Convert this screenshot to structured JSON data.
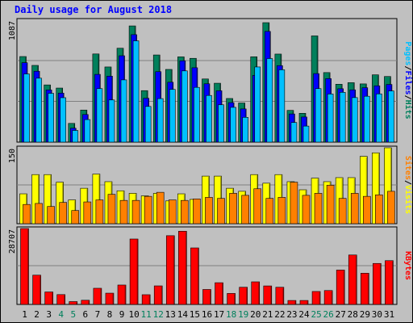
{
  "title": "Daily usage for August 2018",
  "colors": {
    "background": "#c0c0c0",
    "title": "#0000ff",
    "hits": "#00805c",
    "files": "#0000ff",
    "pages": "#00c0ff",
    "visits": "#ffff00",
    "sites": "#ff8000",
    "kbytes": "#ff0000",
    "weekday_label": "#000000",
    "weekend_label": "#00805c"
  },
  "chart_data": [
    {
      "type": "bar",
      "panel": "hits-files-pages",
      "ymax_label": "1087",
      "ylim": [
        0,
        1087
      ],
      "side_label": [
        "Pages",
        "/",
        "Files",
        "/",
        "Hits"
      ],
      "categories": [
        "1",
        "2",
        "3",
        "4",
        "5",
        "6",
        "7",
        "8",
        "9",
        "10",
        "11",
        "12",
        "13",
        "14",
        "15",
        "16",
        "17",
        "18",
        "19",
        "20",
        "21",
        "22",
        "23",
        "24",
        "25",
        "26",
        "27",
        "28",
        "29",
        "30",
        "31"
      ],
      "weekend": [
        false,
        false,
        false,
        true,
        true,
        false,
        false,
        false,
        false,
        false,
        true,
        true,
        false,
        false,
        false,
        false,
        false,
        true,
        true,
        false,
        false,
        false,
        false,
        false,
        true,
        true,
        false,
        false,
        false,
        false,
        false
      ],
      "series": [
        {
          "name": "Hits",
          "values": [
            763,
            684,
            510,
            482,
            167,
            286,
            786,
            670,
            837,
            1036,
            459,
            777,
            648,
            760,
            747,
            563,
            525,
            389,
            349,
            761,
            1065,
            785,
            283,
            257,
            947,
            620,
            516,
            530,
            519,
            600,
            585
          ]
        },
        {
          "name": "Files",
          "values": [
            708,
            632,
            465,
            437,
            124,
            246,
            604,
            588,
            770,
            958,
            391,
            628,
            534,
            725,
            663,
            520,
            458,
            352,
            296,
            595,
            987,
            682,
            251,
            224,
            611,
            566,
            476,
            466,
            485,
            502,
            514
          ]
        },
        {
          "name": "Pages",
          "values": [
            608,
            570,
            435,
            396,
            104,
            201,
            477,
            376,
            555,
            903,
            318,
            388,
            470,
            635,
            488,
            416,
            333,
            310,
            221,
            670,
            745,
            645,
            175,
            143,
            477,
            429,
            444,
            397,
            409,
            430,
            456
          ]
        }
      ]
    },
    {
      "type": "bar",
      "panel": "visits-sites",
      "ymax_label": "150",
      "ylim": [
        0,
        150
      ],
      "side_label": [
        "Sites",
        "/",
        "Visits"
      ],
      "series": [
        {
          "name": "Visits",
          "values": [
            59,
            97,
            97,
            82,
            47,
            70,
            98,
            83,
            65,
            60,
            55,
            60,
            45,
            59,
            48,
            94,
            94,
            70,
            64,
            97,
            80,
            97,
            83,
            67,
            90,
            83,
            91,
            91,
            133,
            140,
            150
          ]
        },
        {
          "name": "Sites",
          "values": [
            38,
            40,
            34,
            42,
            26,
            43,
            47,
            58,
            46,
            46,
            54,
            62,
            47,
            46,
            49,
            52,
            50,
            60,
            56,
            69,
            50,
            52,
            82,
            56,
            60,
            76,
            50,
            60,
            54,
            57,
            64
          ]
        }
      ]
    },
    {
      "type": "bar",
      "panel": "kbytes",
      "ymax_label": "28707",
      "ylim": [
        0,
        28707
      ],
      "side_label": [
        "KBytes"
      ],
      "series": [
        {
          "name": "KBytes",
          "values": [
            28707,
            11071,
            4719,
            3720,
            1075,
            1582,
            6114,
            4264,
            7339,
            24741,
            3675,
            7017,
            26000,
            27683,
            21376,
            5658,
            8215,
            4159,
            6500,
            8549,
            7000,
            6500,
            1500,
            1500,
            4900,
            5258,
            13000,
            18700,
            11800,
            15500,
            16565
          ]
        }
      ]
    }
  ]
}
